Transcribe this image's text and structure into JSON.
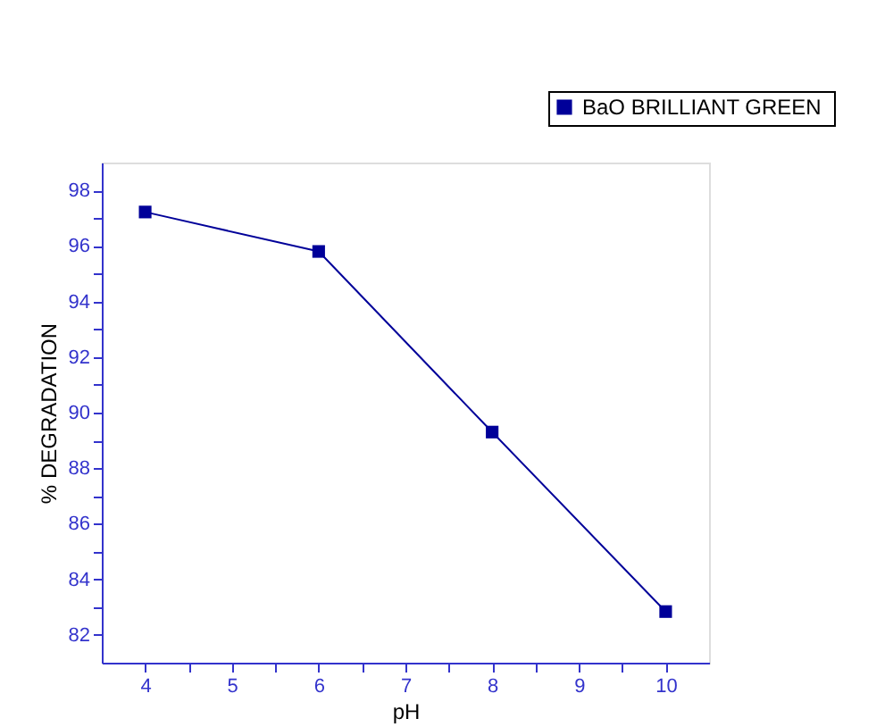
{
  "chart_data": {
    "type": "line",
    "xlabel": "pH",
    "ylabel": "% DEGRADATION",
    "x": [
      4,
      6,
      8,
      10
    ],
    "series": [
      {
        "name": "BaO  BRILLIANT GREEN",
        "color": "#000099",
        "values": [
          97.22,
          95.8,
          89.3,
          82.84
        ]
      }
    ],
    "xlim": [
      3.5,
      10.5
    ],
    "xticks": [
      4,
      {
        "value": 4.5,
        "label": null
      },
      5,
      {
        "value": 5.5,
        "label": null
      },
      6,
      {
        "value": 6.5,
        "label": null
      },
      7,
      {
        "value": 7.5,
        "label": null
      },
      8,
      {
        "value": 8.5,
        "label": null
      },
      9,
      {
        "value": 9.5,
        "label": null
      },
      10
    ],
    "ylim": [
      81,
      99
    ],
    "yticks": [
      82,
      {
        "value": 83,
        "label": null
      },
      84,
      {
        "value": 85,
        "label": null
      },
      86,
      {
        "value": 87,
        "label": null
      },
      88,
      {
        "value": 89,
        "label": null
      },
      90,
      {
        "value": 91,
        "label": null
      },
      92,
      {
        "value": 93,
        "label": null
      },
      94,
      {
        "value": 95,
        "label": null
      },
      96,
      {
        "value": 97,
        "label": null
      },
      98
    ],
    "marker": "square",
    "line_style": "solid",
    "grid": false,
    "legend": "top right"
  }
}
